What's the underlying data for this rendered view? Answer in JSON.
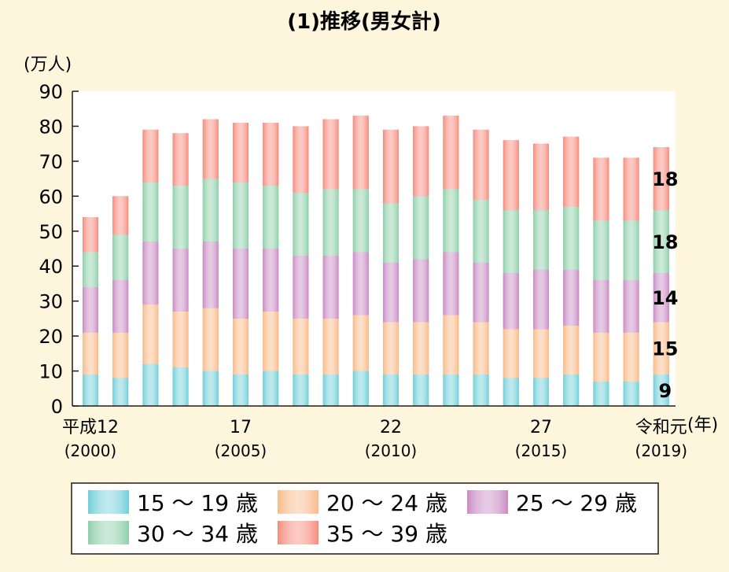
{
  "chart_data": {
    "type": "bar",
    "stacked": true,
    "title": "(1)推移(男女計)",
    "y_unit_label": "(万人)",
    "x_unit_label": "(年)",
    "ylim": [
      0,
      90
    ],
    "yticks": [
      0,
      10,
      20,
      30,
      40,
      50,
      60,
      70,
      80,
      90
    ],
    "grid": false,
    "legend_position": "bottom",
    "categories": [
      "2000",
      "2001",
      "2002",
      "2003",
      "2004",
      "2005",
      "2006",
      "2007",
      "2008",
      "2009",
      "2010",
      "2011",
      "2012",
      "2013",
      "2014",
      "2015",
      "2016",
      "2017",
      "2018",
      "2019"
    ],
    "x_tick_labels": [
      {
        "index": 0,
        "line1": "平成12",
        "line2": "(2000)"
      },
      {
        "index": 5,
        "line1": "17",
        "line2": "(2005)"
      },
      {
        "index": 10,
        "line1": "22",
        "line2": "(2010)"
      },
      {
        "index": 15,
        "line1": "27",
        "line2": "(2015)"
      },
      {
        "index": 19,
        "line1": "令和元",
        "line2": "(2019)"
      }
    ],
    "series": [
      {
        "name": "15 ～ 19 歳",
        "color": "#6fcfd9",
        "values": [
          9,
          8,
          12,
          11,
          10,
          9,
          10,
          9,
          9,
          10,
          9,
          9,
          9,
          9,
          8,
          8,
          9,
          7,
          7,
          9
        ]
      },
      {
        "name": "20 ～ 24 歳",
        "color": "#f9b986",
        "values": [
          12,
          13,
          17,
          16,
          18,
          16,
          17,
          16,
          16,
          16,
          15,
          15,
          17,
          15,
          14,
          14,
          14,
          14,
          14,
          15
        ]
      },
      {
        "name": "25 ～ 29 歳",
        "color": "#c98ac4",
        "values": [
          13,
          15,
          18,
          18,
          19,
          20,
          18,
          18,
          18,
          18,
          17,
          18,
          18,
          17,
          16,
          17,
          16,
          15,
          15,
          14
        ]
      },
      {
        "name": "30 ～ 34 歳",
        "color": "#8dcfa8",
        "values": [
          10,
          13,
          17,
          18,
          18,
          19,
          18,
          18,
          19,
          18,
          17,
          18,
          18,
          18,
          18,
          17,
          18,
          17,
          17,
          18
        ]
      },
      {
        "name": "35 ～ 39 歳",
        "color": "#f68a7b",
        "values": [
          10,
          11,
          15,
          15,
          17,
          17,
          18,
          19,
          20,
          21,
          21,
          20,
          21,
          20,
          20,
          19,
          20,
          18,
          18,
          18
        ]
      }
    ],
    "data_labels": [
      {
        "category_index": 19,
        "series_index": 0,
        "text": "9"
      },
      {
        "category_index": 19,
        "series_index": 1,
        "text": "15"
      },
      {
        "category_index": 19,
        "series_index": 2,
        "text": "14"
      },
      {
        "category_index": 19,
        "series_index": 3,
        "text": "18"
      },
      {
        "category_index": 19,
        "series_index": 4,
        "text": "18"
      }
    ]
  }
}
